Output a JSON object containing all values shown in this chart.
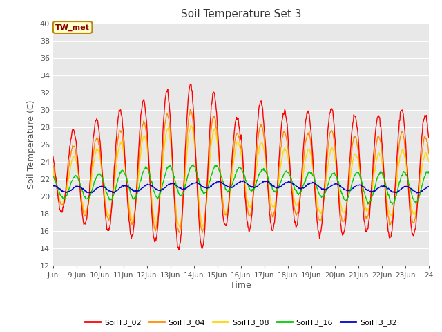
{
  "title": "Soil Temperature Set 3",
  "xlabel": "Time",
  "ylabel": "Soil Temperature (C)",
  "ylim": [
    12,
    40
  ],
  "yticks": [
    12,
    14,
    16,
    18,
    20,
    22,
    24,
    26,
    28,
    30,
    32,
    34,
    36,
    38,
    40
  ],
  "annotation_text": "TW_met",
  "annotation_color": "#8B0000",
  "annotation_bg": "#FFFFCC",
  "annotation_border": "#B8860B",
  "series_colors": {
    "SoilT3_02": "#FF0000",
    "SoilT3_04": "#FF8C00",
    "SoilT3_08": "#FFD700",
    "SoilT3_16": "#00CC00",
    "SoilT3_32": "#0000CD"
  },
  "background_color": "#FFFFFF",
  "plot_bg_color": "#E8E8E8",
  "grid_color": "#FFFFFF",
  "x_start": 8.0,
  "x_end": 24.0,
  "x_tick_positions": [
    8,
    9,
    10,
    11,
    12,
    13,
    14,
    15,
    16,
    17,
    18,
    19,
    20,
    21,
    22,
    23,
    24
  ],
  "x_tick_labels": [
    "Jun",
    "9 Jun",
    "10Jun",
    "11Jun",
    "12Jun",
    "13Jun",
    "14Jun",
    "15Jun",
    "16Jun",
    "17Jun",
    "18Jun",
    "19Jun",
    "20Jun",
    "21Jun",
    "22Jun",
    "23Jun",
    "24"
  ]
}
